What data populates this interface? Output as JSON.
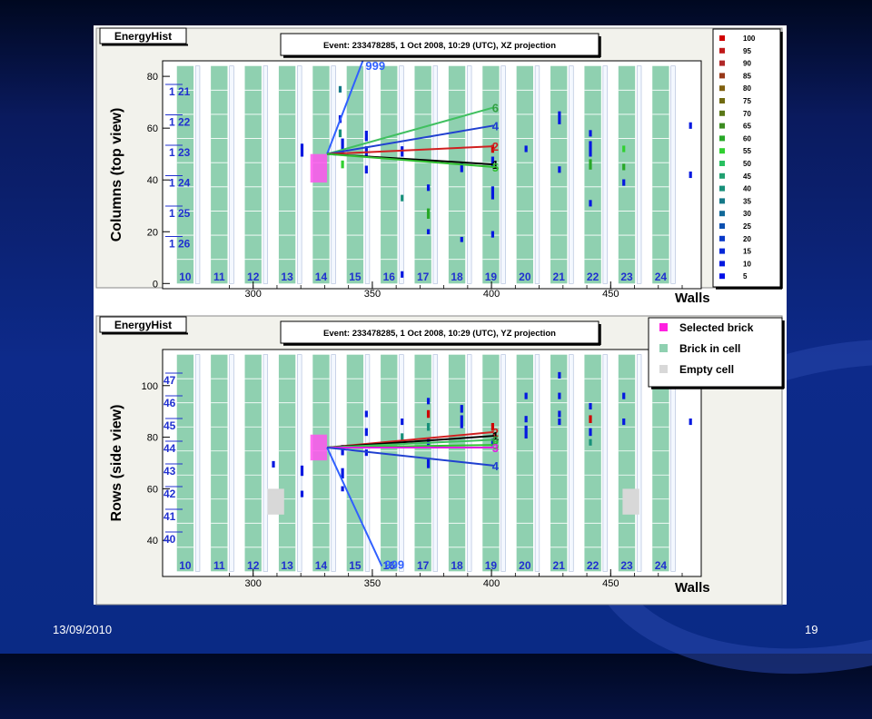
{
  "footer": {
    "date": "13/09/2010",
    "page": "19"
  },
  "colors": {
    "brick": "#8fd0b0",
    "selected": "#ff55ee",
    "empty": "#d8d8d8",
    "hit": "#1030d0",
    "label_blue": "#2030d0"
  },
  "chart_data": [
    {
      "type": "scatter",
      "hist_title": "EnergyHist",
      "title": "Event: 233478285,  1 Oct 2008, 10:29 (UTC), XZ projection",
      "ylabel": "Columns (top view)",
      "xlabel": "Walls",
      "xlim": [
        262,
        488
      ],
      "ylim": [
        -2,
        86
      ],
      "x_ticks": [
        300,
        350,
        400,
        450
      ],
      "y_ticks": [
        0,
        20,
        40,
        60,
        80
      ],
      "wall_labels": [
        "10",
        "11",
        "12",
        "13",
        "14",
        "15",
        "16",
        "17",
        "18",
        "19",
        "20",
        "21",
        "22",
        "23",
        "24"
      ],
      "row_labels": [
        "1 21",
        "1 22",
        "1 23",
        "1 24",
        "1 25",
        "1 26"
      ],
      "legend": {
        "title": "",
        "entries": [
          "100",
          "95",
          "90",
          "85",
          "80",
          "75",
          "70",
          "65",
          "60",
          "55",
          "50",
          "45",
          "40",
          "35",
          "30",
          "25",
          "20",
          "15",
          "10",
          "5"
        ],
        "colors": [
          "#d00000",
          "#c01818",
          "#b02828",
          "#983818",
          "#806010",
          "#706a10",
          "#5a7818",
          "#3c8c20",
          "#28a828",
          "#30d030",
          "#28c060",
          "#20a070",
          "#18907a",
          "#147888",
          "#106898",
          "#0c50b0",
          "#0838c8",
          "#0428d8",
          "#0418e0",
          "#0010e8"
        ]
      },
      "selected_brick": {
        "x": [
          324,
          331
        ],
        "y": [
          39,
          50
        ]
      },
      "vertex": [
        331,
        50
      ],
      "tracks": [
        {
          "label": "999",
          "to": [
            346,
            86
          ],
          "color": "#3060ff",
          "label_color": "#3060ff"
        },
        {
          "label": "6",
          "to": [
            401,
            68
          ],
          "color": "#40c060",
          "label_color": "#30a040"
        },
        {
          "label": "4",
          "to": [
            401,
            61
          ],
          "color": "#2040d0",
          "label_color": "#2040d0"
        },
        {
          "label": "2",
          "to": [
            401,
            53
          ],
          "color": "#d02020",
          "label_color": "#d02020"
        },
        {
          "label": "1",
          "to": [
            401,
            46
          ],
          "color": "#000000",
          "label_color": "#000000"
        },
        {
          "label": "5",
          "to": [
            401,
            45
          ],
          "color": "#30c030",
          "label_color": "#30c030"
        }
      ],
      "hits": [
        {
          "x": 320.5,
          "y": 51.5,
          "h": 5,
          "c": "#0418e0"
        },
        {
          "x": 336.5,
          "y": 75,
          "h": 2.5,
          "c": "#147888"
        },
        {
          "x": 336.5,
          "y": 63.5,
          "h": 3,
          "c": "#0418e0"
        },
        {
          "x": 336.5,
          "y": 58,
          "h": 3,
          "c": "#18907a"
        },
        {
          "x": 337.5,
          "y": 53,
          "h": 6,
          "c": "#0418e0"
        },
        {
          "x": 337.5,
          "y": 46,
          "h": 3,
          "c": "#30d030"
        },
        {
          "x": 347.5,
          "y": 57,
          "h": 4,
          "c": "#0418e0"
        },
        {
          "x": 347.5,
          "y": 51,
          "h": 4,
          "c": "#0418e0"
        },
        {
          "x": 347.5,
          "y": 44,
          "h": 3,
          "c": "#0418e0"
        },
        {
          "x": 362.5,
          "y": 51,
          "h": 4,
          "c": "#0418e0"
        },
        {
          "x": 362.5,
          "y": 33,
          "h": 2.5,
          "c": "#18907a"
        },
        {
          "x": 362.5,
          "y": 3.5,
          "h": 2.5,
          "c": "#0418e0"
        },
        {
          "x": 373.5,
          "y": 37,
          "h": 2.5,
          "c": "#0418e0"
        },
        {
          "x": 373.5,
          "y": 27,
          "h": 4,
          "c": "#28a828"
        },
        {
          "x": 373.5,
          "y": 20,
          "h": 2,
          "c": "#0418e0"
        },
        {
          "x": 387.5,
          "y": 45,
          "h": 4,
          "c": "#0418e0"
        },
        {
          "x": 387.5,
          "y": 17,
          "h": 2,
          "c": "#0418e0"
        },
        {
          "x": 400.5,
          "y": 52,
          "h": 3,
          "c": "#d00000"
        },
        {
          "x": 400.5,
          "y": 47,
          "h": 4,
          "c": "#0418e0"
        },
        {
          "x": 400.5,
          "y": 35,
          "h": 5,
          "c": "#0418e0"
        },
        {
          "x": 400.5,
          "y": 19,
          "h": 2.5,
          "c": "#0418e0"
        },
        {
          "x": 414.5,
          "y": 52,
          "h": 2.5,
          "c": "#0418e0"
        },
        {
          "x": 428.5,
          "y": 64,
          "h": 5,
          "c": "#0418e0"
        },
        {
          "x": 428.5,
          "y": 44,
          "h": 2.5,
          "c": "#0418e0"
        },
        {
          "x": 441.5,
          "y": 58,
          "h": 2.5,
          "c": "#0418e0"
        },
        {
          "x": 441.5,
          "y": 52,
          "h": 6,
          "c": "#0418e0"
        },
        {
          "x": 441.5,
          "y": 46,
          "h": 4,
          "c": "#28a828"
        },
        {
          "x": 441.5,
          "y": 31,
          "h": 2.5,
          "c": "#0418e0"
        },
        {
          "x": 455.5,
          "y": 52,
          "h": 2.5,
          "c": "#30d030"
        },
        {
          "x": 455.5,
          "y": 45,
          "h": 2.5,
          "c": "#28a828"
        },
        {
          "x": 455.5,
          "y": 39,
          "h": 2.5,
          "c": "#0418e0"
        },
        {
          "x": 483.5,
          "y": 61,
          "h": 2.5,
          "c": "#0418e0"
        },
        {
          "x": 483.5,
          "y": 42,
          "h": 2.5,
          "c": "#0418e0"
        }
      ]
    },
    {
      "type": "scatter",
      "hist_title": "EnergyHist",
      "title": "Event: 233478285,  1 Oct 2008, 10:29 (UTC), YZ projection",
      "ylabel": "Rows (side view)",
      "xlabel": "Walls",
      "xlim": [
        262,
        488
      ],
      "ylim": [
        26,
        114
      ],
      "x_ticks": [
        300,
        350,
        400,
        450
      ],
      "y_ticks": [
        40,
        60,
        80,
        100
      ],
      "wall_labels": [
        "10",
        "11",
        "12",
        "13",
        "14",
        "15",
        "16",
        "17",
        "18",
        "19",
        "20",
        "21",
        "22",
        "23",
        "24"
      ],
      "row_labels": [
        "47",
        "46",
        "45",
        "44",
        "43",
        "42",
        "41",
        "40"
      ],
      "legend": {
        "title": "",
        "entries": [
          "Selected brick",
          "Brick in cell",
          "Empty cell"
        ],
        "colors": [
          "#ff20e0",
          "#8fd0b0",
          "#d8d8d8"
        ]
      },
      "selected_brick": {
        "x": [
          324,
          331
        ],
        "y": [
          71,
          81
        ]
      },
      "empty_cells": [
        {
          "x": [
            306,
            313
          ],
          "y": [
            50,
            60
          ]
        },
        {
          "x": [
            455,
            462
          ],
          "y": [
            50,
            60
          ]
        }
      ],
      "vertex": [
        331,
        76
      ],
      "tracks": [
        {
          "label": "999",
          "to": [
            354,
            30
          ],
          "color": "#3060ff",
          "label_color": "#3060ff"
        },
        {
          "label": "2",
          "to": [
            401,
            82
          ],
          "color": "#d02020",
          "label_color": "#d02020"
        },
        {
          "label": "1",
          "to": [
            401,
            80.5
          ],
          "color": "#000000",
          "label_color": "#000000"
        },
        {
          "label": "6",
          "to": [
            401,
            79
          ],
          "color": "#40c060",
          "label_color": "#30a040"
        },
        {
          "label": "5",
          "to": [
            401,
            77
          ],
          "color": "#30c030",
          "label_color": "#30c030"
        },
        {
          "label": "3",
          "to": [
            401,
            76
          ],
          "color": "#e020e0",
          "label_color": "#e020e0"
        },
        {
          "label": "4",
          "to": [
            401,
            69
          ],
          "color": "#2040d0",
          "label_color": "#2040d0"
        }
      ],
      "hits": [
        {
          "x": 308.5,
          "y": 69.5,
          "h": 2.5,
          "c": "#0418e0"
        },
        {
          "x": 320.5,
          "y": 67,
          "h": 4,
          "c": "#0418e0"
        },
        {
          "x": 320.5,
          "y": 58,
          "h": 2.5,
          "c": "#0418e0"
        },
        {
          "x": 337.5,
          "y": 75,
          "h": 4,
          "c": "#0418e0"
        },
        {
          "x": 337.5,
          "y": 66,
          "h": 4,
          "c": "#0418e0"
        },
        {
          "x": 337.5,
          "y": 60,
          "h": 2,
          "c": "#0418e0"
        },
        {
          "x": 347.5,
          "y": 89,
          "h": 2.5,
          "c": "#0418e0"
        },
        {
          "x": 347.5,
          "y": 82,
          "h": 3,
          "c": "#0418e0"
        },
        {
          "x": 347.5,
          "y": 74,
          "h": 2.5,
          "c": "#0418e0"
        },
        {
          "x": 362.5,
          "y": 86,
          "h": 2.5,
          "c": "#0418e0"
        },
        {
          "x": 362.5,
          "y": 80,
          "h": 3,
          "c": "#18907a"
        },
        {
          "x": 373.5,
          "y": 94,
          "h": 2.5,
          "c": "#0418e0"
        },
        {
          "x": 373.5,
          "y": 89,
          "h": 3,
          "c": "#d00000"
        },
        {
          "x": 373.5,
          "y": 84,
          "h": 3,
          "c": "#18907a"
        },
        {
          "x": 373.5,
          "y": 78,
          "h": 3,
          "c": "#0418e0"
        },
        {
          "x": 373.5,
          "y": 70,
          "h": 4,
          "c": "#0418e0"
        },
        {
          "x": 387.5,
          "y": 91,
          "h": 3,
          "c": "#0418e0"
        },
        {
          "x": 387.5,
          "y": 86,
          "h": 5,
          "c": "#0418e0"
        },
        {
          "x": 400.5,
          "y": 84,
          "h": 3,
          "c": "#d00000"
        },
        {
          "x": 400.5,
          "y": 78,
          "h": 3,
          "c": "#0418e0"
        },
        {
          "x": 414.5,
          "y": 96,
          "h": 2.5,
          "c": "#0418e0"
        },
        {
          "x": 414.5,
          "y": 87,
          "h": 2.5,
          "c": "#0418e0"
        },
        {
          "x": 414.5,
          "y": 82,
          "h": 5,
          "c": "#0418e0"
        },
        {
          "x": 428.5,
          "y": 104,
          "h": 2.5,
          "c": "#0418e0"
        },
        {
          "x": 428.5,
          "y": 96,
          "h": 2.5,
          "c": "#0418e0"
        },
        {
          "x": 428.5,
          "y": 89,
          "h": 2.5,
          "c": "#0418e0"
        },
        {
          "x": 428.5,
          "y": 86,
          "h": 2.5,
          "c": "#0418e0"
        },
        {
          "x": 441.5,
          "y": 92,
          "h": 2.5,
          "c": "#0418e0"
        },
        {
          "x": 441.5,
          "y": 87,
          "h": 3,
          "c": "#d00000"
        },
        {
          "x": 441.5,
          "y": 82,
          "h": 3,
          "c": "#0418e0"
        },
        {
          "x": 441.5,
          "y": 78,
          "h": 2.5,
          "c": "#18907a"
        },
        {
          "x": 455.5,
          "y": 96,
          "h": 2.5,
          "c": "#0418e0"
        },
        {
          "x": 455.5,
          "y": 86,
          "h": 2.5,
          "c": "#0418e0"
        },
        {
          "x": 483.5,
          "y": 86,
          "h": 2.5,
          "c": "#0418e0"
        }
      ]
    }
  ]
}
